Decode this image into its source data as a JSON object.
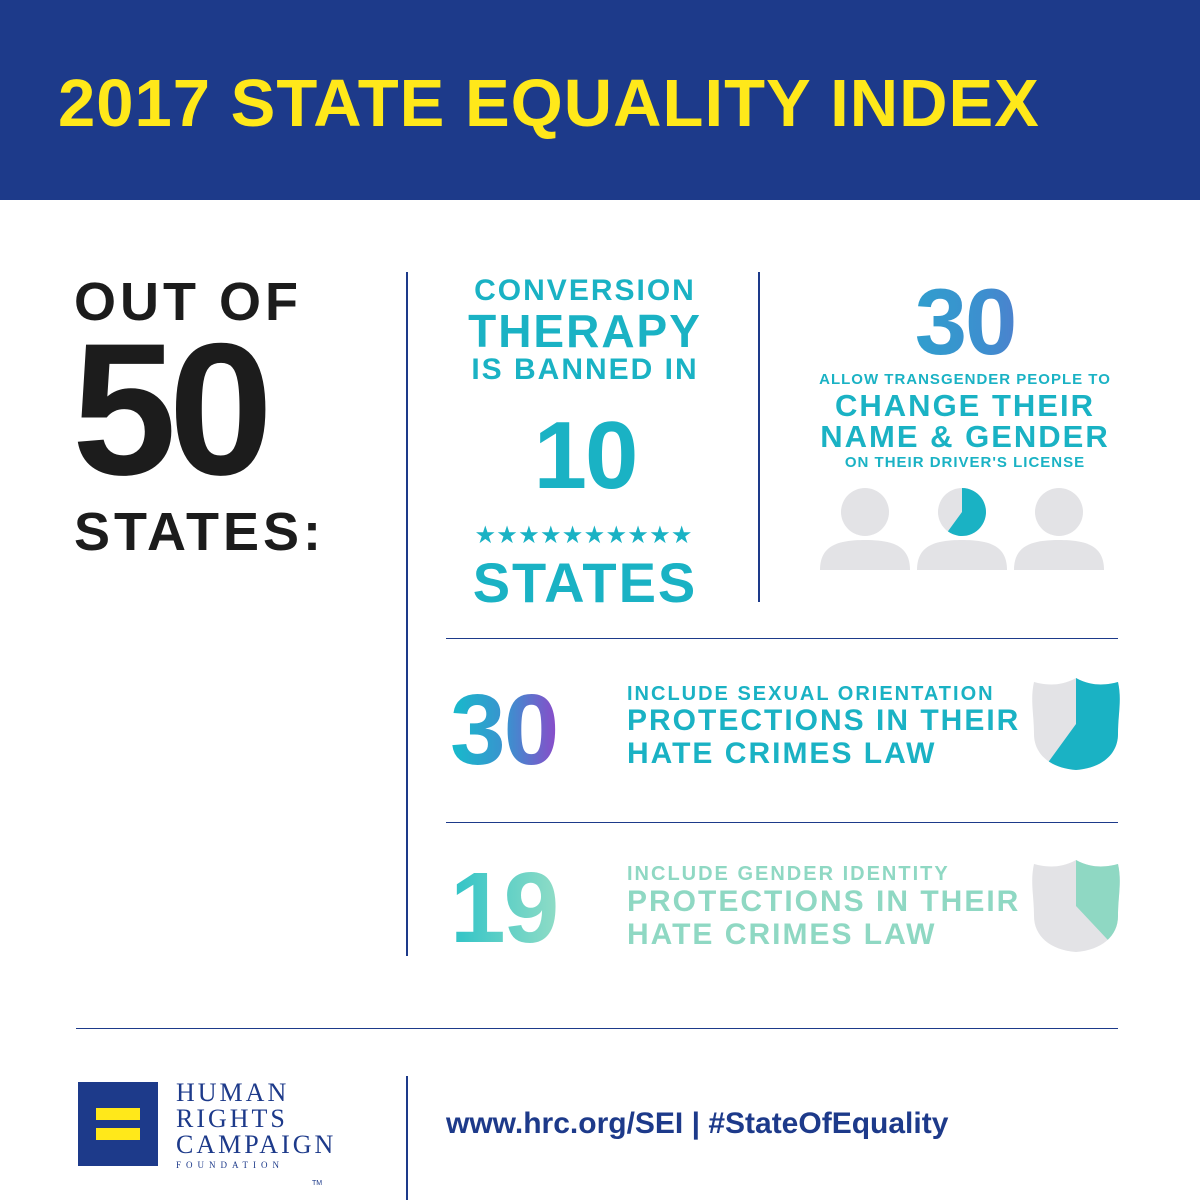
{
  "header": {
    "title": "2017 STATE EQUALITY INDEX"
  },
  "intro": {
    "line1": "OUT OF",
    "number": "50",
    "line2": "STATES:"
  },
  "conversion_therapy": {
    "line1": "CONVERSION",
    "line2": "THERAPY",
    "line3": "IS BANNED IN",
    "number": "10",
    "stars": "★★★★★★★★★★",
    "unit": "STATES"
  },
  "transgender_id": {
    "number": "30",
    "line1": "ALLOW TRANSGENDER PEOPLE TO",
    "line2": "CHANGE THEIR",
    "line3": "NAME & GENDER",
    "line4": "ON THEIR DRIVER'S LICENSE",
    "fraction": 0.6
  },
  "sexual_orientation": {
    "number": "30",
    "line1": "INCLUDE SEXUAL ORIENTATION",
    "line2": "PROTECTIONS IN THEIR",
    "line3": "HATE CRIMES LAW",
    "fraction": 0.6
  },
  "gender_identity": {
    "number": "19",
    "line1": "INCLUDE GENDER IDENTITY",
    "line2": "PROTECTIONS IN THEIR",
    "line3": "HATE CRIMES LAW",
    "fraction": 0.38
  },
  "footer": {
    "org_line1": "HUMAN",
    "org_line2": "RIGHTS",
    "org_line3": "CAMPAIGN",
    "org_line4": "FOUNDATION",
    "trademark": "TM",
    "url": "www.hrc.org/SEI  |  #StateOfEquality"
  },
  "colors": {
    "navy": "#1d3a8a",
    "yellow": "#ffe81a",
    "teal": "#1ab2c4",
    "mint": "#8fd8c3",
    "gray": "#e3e3e6"
  }
}
